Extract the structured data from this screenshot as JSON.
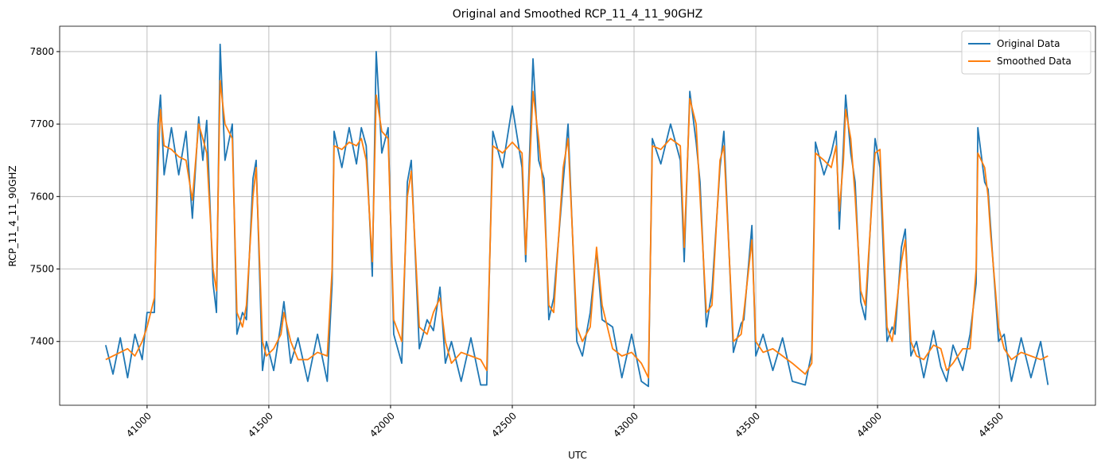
{
  "chart_data": {
    "type": "line",
    "title": "Original and Smoothed RCP_11_4_11_90GHZ",
    "x_label": "UTC",
    "y_label": "RCP_11_4_11_90GHZ",
    "x": [
      40830,
      40860,
      40890,
      40920,
      40950,
      40980,
      41000,
      41030,
      41045,
      41055,
      41070,
      41100,
      41130,
      41160,
      41186,
      41212,
      41229,
      41245,
      41271,
      41285,
      41300,
      41320,
      41350,
      41369,
      41392,
      41408,
      41435,
      41448,
      41474,
      41490,
      41520,
      41550,
      41562,
      41590,
      41620,
      41660,
      41700,
      41740,
      41760,
      41768,
      41800,
      41830,
      41860,
      41880,
      41900,
      41925,
      41941,
      41964,
      41990,
      42013,
      42046,
      42069,
      42085,
      42118,
      42150,
      42176,
      42203,
      42225,
      42250,
      42290,
      42330,
      42370,
      42395,
      42420,
      42460,
      42500,
      42540,
      42555,
      42585,
      42608,
      42630,
      42650,
      42670,
      42709,
      42729,
      42765,
      42788,
      42820,
      42846,
      42869,
      42912,
      42950,
      42990,
      43030,
      43059,
      43075,
      43110,
      43150,
      43190,
      43206,
      43229,
      43255,
      43271,
      43297,
      43320,
      43353,
      43369,
      43408,
      43440,
      43451,
      43484,
      43500,
      43530,
      43570,
      43610,
      43650,
      43703,
      43730,
      43745,
      43780,
      43810,
      43830,
      43843,
      43860,
      43869,
      43890,
      43908,
      43931,
      43950,
      43990,
      44010,
      44039,
      44060,
      44072,
      44098,
      44114,
      44137,
      44160,
      44190,
      44230,
      44260,
      44284,
      44310,
      44350,
      44380,
      44405,
      44412,
      44440,
      44454,
      44464,
      44497,
      44520,
      44550,
      44590,
      44630,
      44670,
      44700
    ],
    "series": [
      {
        "name": "Original Data",
        "color": "#1f77b4",
        "values": [
          7395,
          7355,
          7405,
          7350,
          7410,
          7375,
          7440,
          7440,
          7700,
          7740,
          7630,
          7695,
          7630,
          7690,
          7570,
          7710,
          7650,
          7705,
          7480,
          7440,
          7810,
          7650,
          7700,
          7410,
          7440,
          7430,
          7625,
          7650,
          7360,
          7400,
          7360,
          7425,
          7455,
          7370,
          7405,
          7345,
          7410,
          7345,
          7480,
          7690,
          7640,
          7695,
          7645,
          7695,
          7670,
          7490,
          7800,
          7660,
          7695,
          7410,
          7370,
          7620,
          7650,
          7390,
          7430,
          7415,
          7475,
          7370,
          7400,
          7345,
          7405,
          7340,
          7340,
          7690,
          7640,
          7725,
          7640,
          7510,
          7790,
          7650,
          7625,
          7430,
          7460,
          7620,
          7700,
          7400,
          7380,
          7440,
          7525,
          7430,
          7420,
          7350,
          7410,
          7345,
          7338,
          7680,
          7645,
          7700,
          7650,
          7510,
          7745,
          7675,
          7620,
          7420,
          7470,
          7640,
          7690,
          7385,
          7425,
          7430,
          7560,
          7380,
          7410,
          7360,
          7405,
          7345,
          7340,
          7385,
          7675,
          7630,
          7660,
          7690,
          7555,
          7670,
          7740,
          7660,
          7620,
          7455,
          7430,
          7680,
          7640,
          7400,
          7420,
          7410,
          7530,
          7555,
          7380,
          7400,
          7350,
          7415,
          7365,
          7345,
          7395,
          7360,
          7410,
          7480,
          7695,
          7620,
          7610,
          7560,
          7400,
          7410,
          7345,
          7405,
          7350,
          7400,
          7340
        ]
      },
      {
        "name": "Smoothed Data",
        "color": "#ff7f0e",
        "values": [
          7375,
          7380,
          7385,
          7390,
          7380,
          7400,
          7420,
          7460,
          7640,
          7720,
          7670,
          7665,
          7655,
          7650,
          7595,
          7700,
          7680,
          7660,
          7500,
          7470,
          7760,
          7700,
          7680,
          7440,
          7420,
          7450,
          7600,
          7640,
          7400,
          7380,
          7390,
          7410,
          7440,
          7400,
          7375,
          7375,
          7385,
          7380,
          7500,
          7670,
          7665,
          7675,
          7670,
          7680,
          7650,
          7510,
          7740,
          7690,
          7680,
          7430,
          7400,
          7600,
          7635,
          7420,
          7410,
          7440,
          7460,
          7400,
          7370,
          7385,
          7380,
          7375,
          7360,
          7670,
          7660,
          7675,
          7660,
          7520,
          7745,
          7680,
          7600,
          7450,
          7440,
          7640,
          7680,
          7420,
          7400,
          7420,
          7530,
          7450,
          7390,
          7380,
          7385,
          7370,
          7350,
          7670,
          7665,
          7680,
          7670,
          7530,
          7735,
          7700,
          7600,
          7440,
          7450,
          7650,
          7670,
          7400,
          7410,
          7440,
          7540,
          7400,
          7385,
          7390,
          7380,
          7370,
          7355,
          7370,
          7660,
          7650,
          7640,
          7670,
          7580,
          7650,
          7720,
          7680,
          7600,
          7470,
          7450,
          7660,
          7665,
          7420,
          7400,
          7430,
          7510,
          7540,
          7400,
          7380,
          7375,
          7395,
          7390,
          7360,
          7370,
          7390,
          7390,
          7500,
          7660,
          7640,
          7600,
          7550,
          7420,
          7390,
          7375,
          7385,
          7380,
          7375,
          7380
        ]
      }
    ],
    "xlim": [
      40641,
      44895
    ],
    "ylim": [
      7312,
      7835
    ],
    "xticks": [
      41000,
      41500,
      42000,
      42500,
      43000,
      43500,
      44000,
      44500
    ],
    "yticks": [
      7400,
      7500,
      7600,
      7700,
      7800
    ],
    "grid": true,
    "legend": "upper right"
  }
}
